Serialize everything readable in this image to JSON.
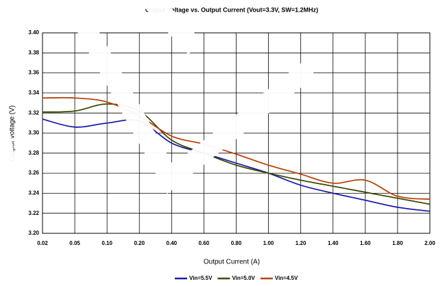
{
  "chart_data": {
    "type": "line",
    "title": "Output Voltage vs. Output Current (Vout=3.3V, SW=1.2MHz)",
    "x_label": "Output Current (A)",
    "y_label": "Output Voltage (V)",
    "categories": [
      "0.02",
      "0.05",
      "0.10",
      "0.20",
      "0.40",
      "0.60",
      "0.80",
      "1.00",
      "1.20",
      "1.40",
      "1.60",
      "1.80",
      "2.00"
    ],
    "series": [
      {
        "name": "Vin=5.5V",
        "color": "#1c1ca8",
        "values": [
          3.314,
          3.306,
          3.31,
          3.312,
          3.29,
          3.28,
          3.27,
          3.26,
          3.248,
          3.24,
          3.233,
          3.226,
          3.222
        ]
      },
      {
        "name": "Vin=5.0V",
        "color": "#3d4a05",
        "values": [
          3.321,
          3.322,
          3.329,
          3.322,
          3.293,
          3.28,
          3.268,
          3.26,
          3.253,
          3.247,
          3.241,
          3.235,
          3.229
        ]
      },
      {
        "name": "Vin=4.5V",
        "color": "#b5450e",
        "values": [
          3.335,
          3.335,
          3.331,
          3.317,
          3.297,
          3.289,
          3.279,
          3.268,
          3.259,
          3.25,
          3.253,
          3.237,
          3.234
        ]
      }
    ],
    "ylim": [
      3.2,
      3.4
    ],
    "yticks": [
      {
        "value": 3.2,
        "label": "3.20"
      },
      3.22,
      3.24,
      3.26,
      3.28,
      {
        "value": 3.3,
        "label": "3.30"
      },
      3.32,
      3.34,
      3.36,
      3.38,
      {
        "value": 3.4,
        "label": "3.40"
      }
    ],
    "grid": true,
    "legend": "bottom"
  }
}
